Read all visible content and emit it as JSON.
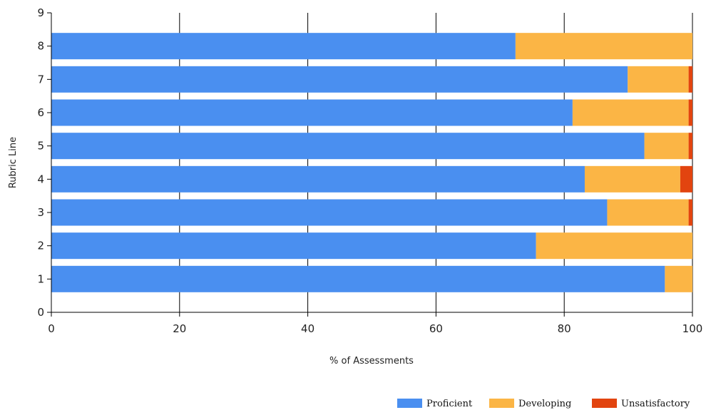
{
  "chart_data": {
    "type": "bar",
    "orientation": "horizontal",
    "stacked": true,
    "xlabel": "% of Assessments",
    "ylabel": "Rubric Line",
    "xlim": [
      0,
      100
    ],
    "ylim": [
      0,
      9
    ],
    "xticks": [
      "0",
      "20",
      "40",
      "60",
      "80",
      "100"
    ],
    "yticks": [
      "0",
      "1",
      "2",
      "3",
      "4",
      "5",
      "6",
      "7",
      "8",
      "9"
    ],
    "grid": "vertical",
    "legend_position": "bottom-right",
    "categories": [
      1,
      2,
      3,
      4,
      5,
      6,
      7,
      8
    ],
    "series": [
      {
        "name": "Proficient",
        "color": "#4a8ff0",
        "values": [
          95.7,
          75.6,
          86.7,
          83.2,
          92.5,
          81.3,
          89.9,
          72.4
        ]
      },
      {
        "name": "Developing",
        "color": "#fbb545",
        "values": [
          4.3,
          24.4,
          12.7,
          14.9,
          6.9,
          18.1,
          9.5,
          27.6
        ]
      },
      {
        "name": "Unsatisfactory",
        "color": "#e2440f",
        "values": [
          0,
          0,
          0.6,
          1.9,
          0.6,
          0.6,
          0.6,
          0
        ]
      }
    ]
  }
}
